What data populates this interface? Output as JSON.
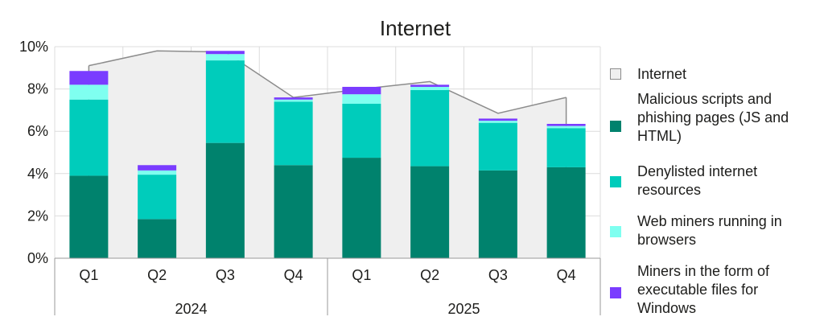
{
  "chart_data": {
    "type": "bar",
    "title": "Internet",
    "xlabel": "",
    "ylabel": "",
    "ylim": [
      0,
      10
    ],
    "y_ticks": [
      "0%",
      "2%",
      "4%",
      "6%",
      "8%",
      "10%"
    ],
    "grid": true,
    "legend_position": "right",
    "categories": [
      "Q1",
      "Q2",
      "Q3",
      "Q4",
      "Q1",
      "Q2",
      "Q3",
      "Q4"
    ],
    "groups": [
      {
        "label": "2024",
        "categories": [
          "Q1",
          "Q2",
          "Q3",
          "Q4"
        ]
      },
      {
        "label": "2025",
        "categories": [
          "Q1",
          "Q2",
          "Q3",
          "Q4"
        ]
      }
    ],
    "area_series": {
      "name": "Internet",
      "type": "area",
      "color": "#efefef",
      "line_color": "#8c8c8c",
      "values": [
        9.1,
        9.8,
        9.75,
        7.6,
        8.0,
        8.35,
        6.85,
        7.6
      ]
    },
    "series": [
      {
        "name": "Malicious scripts and phishing pages (JS and HTML)",
        "color": "#00826d",
        "values": [
          3.9,
          1.85,
          5.45,
          4.4,
          4.75,
          4.35,
          4.15,
          4.3
        ]
      },
      {
        "name": "Denylisted internet resources",
        "color": "#00ccbb",
        "values": [
          3.6,
          2.1,
          3.9,
          3.0,
          2.55,
          3.6,
          2.25,
          1.85
        ]
      },
      {
        "name": "Web miners running in browsers",
        "color": "#7ffff0",
        "values": [
          0.7,
          0.2,
          0.3,
          0.1,
          0.45,
          0.15,
          0.1,
          0.1
        ]
      },
      {
        "name": "Miners in the form of executable files for Windows",
        "color": "#7a3cff",
        "values": [
          0.65,
          0.25,
          0.15,
          0.1,
          0.35,
          0.1,
          0.1,
          0.1
        ]
      }
    ]
  },
  "legend": [
    {
      "label": "Internet",
      "color": "#efefef",
      "border": "#8c8c8c"
    },
    {
      "label": "Malicious scripts and phishing pages (JS and HTML)",
      "color": "#00826d"
    },
    {
      "label": "Denylisted internet resources",
      "color": "#00ccbb"
    },
    {
      "label": "Web miners running in browsers",
      "color": "#7ffff0"
    },
    {
      "label": "Miners in the form of executable files for Windows",
      "color": "#7a3cff"
    }
  ]
}
